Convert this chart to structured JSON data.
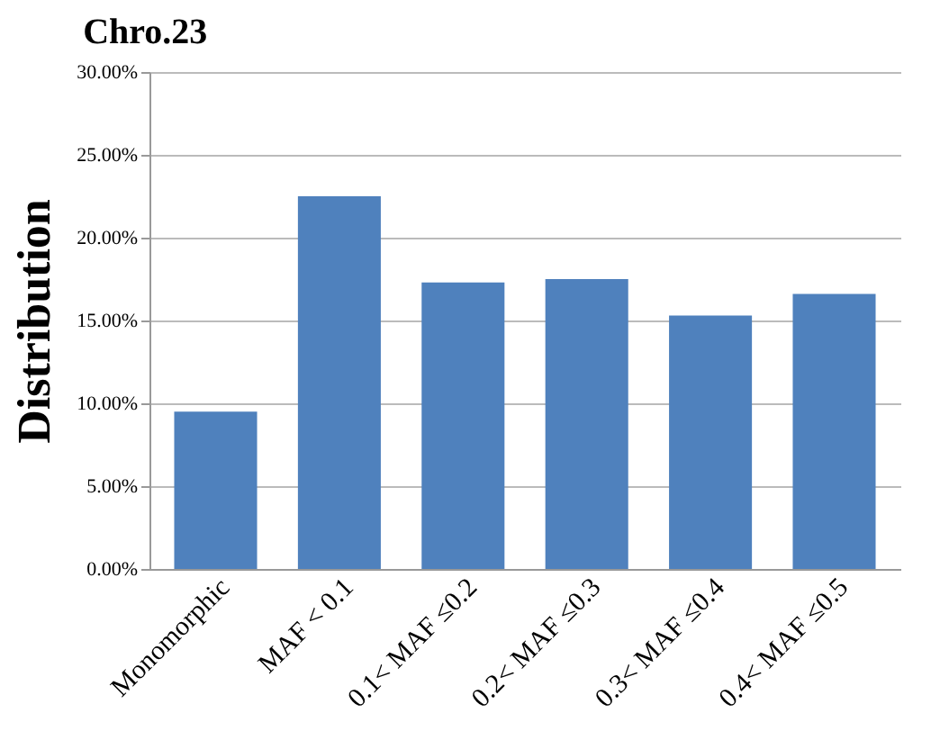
{
  "chart_data": {
    "type": "bar",
    "title": "Chro.23",
    "ylabel": "Distribution",
    "categories": [
      "Monomorphic",
      "MAF < 0.1",
      "0.1< MAF ≤0.2",
      "0.2< MAF ≤0.3",
      "0.3< MAF ≤0.4",
      "0.4< MAF ≤0.5"
    ],
    "values": [
      9.5,
      22.5,
      17.3,
      17.5,
      15.3,
      16.6
    ],
    "color": "#4f81bd",
    "ylim": [
      0,
      30
    ],
    "yticks": [
      {
        "value": 0,
        "label": "0.00%"
      },
      {
        "value": 5,
        "label": "5.00%"
      },
      {
        "value": 10,
        "label": "10.00%"
      },
      {
        "value": 15,
        "label": "15.00%"
      },
      {
        "value": 20,
        "label": "20.00%"
      },
      {
        "value": 25,
        "label": "25.00%"
      },
      {
        "value": 30,
        "label": "30.00%"
      }
    ],
    "grid": "y"
  }
}
